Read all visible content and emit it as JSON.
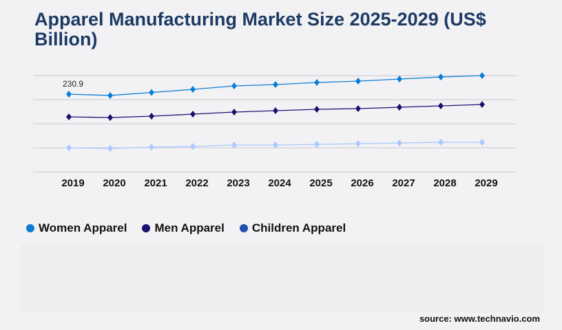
{
  "title": "Apparel Manufacturing Market Size 2025-2029 (US$ Billion)",
  "source": "source: www.technavio.com",
  "chart_data": {
    "type": "line",
    "title": "Apparel Manufacturing Market Size 2025-2029 (US$ Billion)",
    "categories": [
      "2019",
      "2020",
      "2021",
      "2022",
      "2023",
      "2024",
      "2025",
      "2026",
      "2027",
      "2028",
      "2029"
    ],
    "ylim": [
      0,
      286
    ],
    "grid": true,
    "legend": "bottom-left",
    "annotations": [
      {
        "series": "Women Apparel",
        "category": "2019",
        "label": "230.9"
      }
    ],
    "series": [
      {
        "name": "Women Apparel",
        "color": "#0a7fd4",
        "legend_color": "#0a7fd4",
        "values": [
          230.9,
          227.1,
          236.0,
          245.1,
          255.4,
          259.4,
          265.6,
          269.7,
          275.8,
          281.9,
          286.0
        ]
      },
      {
        "name": "Men Apparel",
        "color": "#1a1070",
        "legend_color": "#1a1070",
        "values": [
          163.4,
          161.4,
          165.5,
          171.6,
          177.7,
          181.8,
          185.9,
          187.9,
          192.0,
          196.1,
          200.2
        ]
      },
      {
        "name": "Children Apparel",
        "color": "#a8c8ff",
        "legend_color": "#1f4fb0",
        "values": [
          71.5,
          69.5,
          73.5,
          75.6,
          79.7,
          79.7,
          81.7,
          83.8,
          85.8,
          87.8,
          87.8
        ]
      }
    ]
  }
}
